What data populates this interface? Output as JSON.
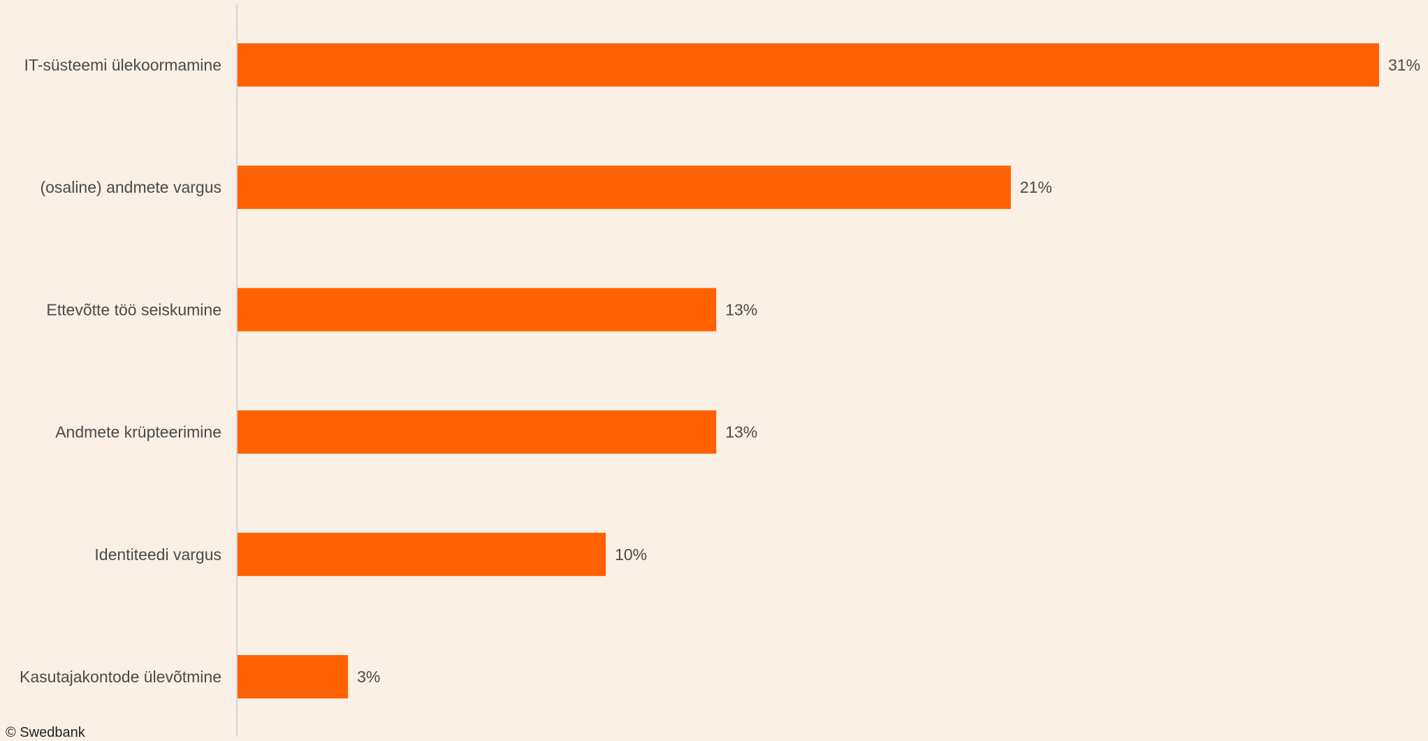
{
  "chart_data": {
    "type": "bar",
    "orientation": "horizontal",
    "categories": [
      "IT-süsteemi ülekoormamine",
      "(osaline) andmete vargus",
      "Ettevõtte töö seiskumine",
      "Andmete krüpteerimine",
      "Identiteedi vargus",
      "Kasutajakontode ülevõtmine"
    ],
    "values": [
      31,
      21,
      13,
      13,
      10,
      3
    ],
    "value_labels": [
      "31%",
      "21%",
      "13%",
      "13%",
      "10%",
      "3%"
    ],
    "xlim": [
      0,
      31
    ],
    "grid": false,
    "legend": "none",
    "title": "",
    "xlabel": "",
    "ylabel": ""
  },
  "colors": {
    "background": "#faf0e6",
    "bar": "#ff6100",
    "axis": "#d4d4d4",
    "label_text": "#4a4a4a"
  },
  "credit": "© Swedbank"
}
